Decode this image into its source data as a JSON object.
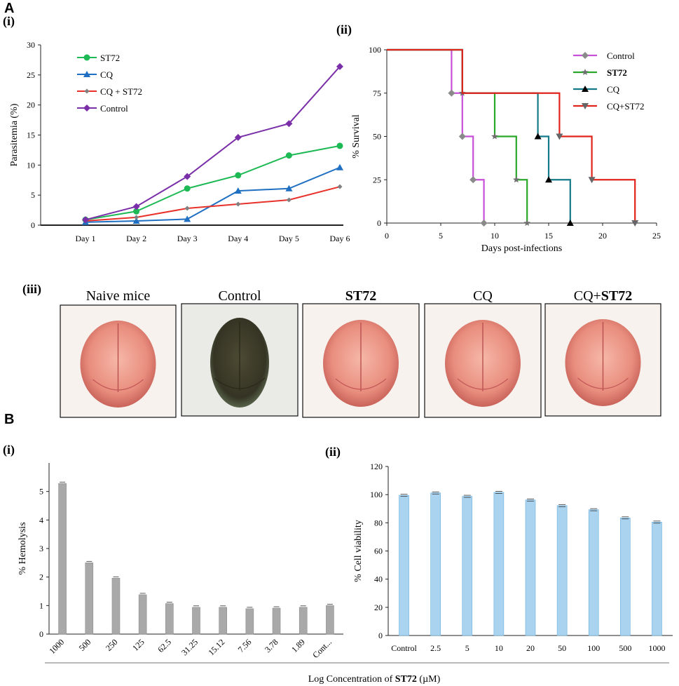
{
  "panels": {
    "a_letter": "A",
    "b_letter": "B",
    "a1": "(i)",
    "a2": "(ii)",
    "a3": "(iii)",
    "b1": "(i)",
    "b2": "(ii)"
  },
  "photos": {
    "labels": [
      "Naive mice",
      "Control",
      "ST72",
      "CQ",
      "CQ+ST72"
    ],
    "bold_parts": [
      "",
      "",
      "ST72",
      "",
      "ST72"
    ],
    "plain_parts": [
      "Naive mice",
      "Control",
      "",
      "CQ",
      "CQ+"
    ],
    "tones": [
      "pink",
      "dark",
      "pink",
      "pink",
      "pink"
    ]
  },
  "colors": {
    "ST72": "#1db954",
    "CQ": "#1f6fc2",
    "CQ_ST72": "#e8312a",
    "Control": "#7a2fa8",
    "surv_control": "#c84fd8",
    "surv_st72": "#2aa82a",
    "surv_cq": "#137a8a",
    "surv_cqst72": "#e0241c",
    "hemo_bar": "#a9a9a9",
    "viab_bar": "#a9d3ef"
  },
  "chart_data": [
    {
      "id": "parasitemia",
      "type": "line",
      "title": "",
      "xlabel": "",
      "ylabel": "Parasitemia (%)",
      "categories": [
        "Day 1",
        "Day 2",
        "Day 3",
        "Day 4",
        "Day 5",
        "Day 6"
      ],
      "ylim": [
        0,
        30
      ],
      "yticks": [
        0,
        5,
        10,
        15,
        20,
        25,
        30
      ],
      "legend_position": "top-left",
      "series": [
        {
          "name": "ST72",
          "marker": "circle",
          "values": [
            0.9,
            2.3,
            6.1,
            8.3,
            11.6,
            13.2
          ]
        },
        {
          "name": "CQ",
          "marker": "triangle",
          "values": [
            0.5,
            0.7,
            1.0,
            5.7,
            6.1,
            9.6
          ]
        },
        {
          "name": "CQ + ST72",
          "marker": "diamond-small",
          "values": [
            0.7,
            1.3,
            2.8,
            3.5,
            4.2,
            6.4
          ]
        },
        {
          "name": "Control",
          "marker": "diamond",
          "values": [
            0.9,
            3.1,
            8.1,
            14.6,
            16.9,
            26.4
          ]
        }
      ]
    },
    {
      "id": "survival",
      "type": "line",
      "title": "",
      "xlabel": "Days post-infections",
      "ylabel": "% Survival",
      "xlim": [
        0,
        25
      ],
      "ylim": [
        0,
        100
      ],
      "xticks": [
        0,
        5,
        10,
        15,
        20,
        25
      ],
      "yticks": [
        0,
        25,
        50,
        75,
        100
      ],
      "legend_position": "top-right",
      "series": [
        {
          "name": "Control",
          "marker": "diamond",
          "steps": [
            [
              0,
              100
            ],
            [
              6,
              75
            ],
            [
              7,
              50
            ],
            [
              8,
              25
            ],
            [
              9,
              0
            ]
          ],
          "end": 9
        },
        {
          "name": "ST72",
          "marker": "star",
          "steps": [
            [
              0,
              100
            ],
            [
              7,
              75
            ],
            [
              10,
              50
            ],
            [
              12,
              25
            ],
            [
              13,
              0
            ]
          ],
          "end": 13
        },
        {
          "name": "CQ",
          "marker": "triangle",
          "steps": [
            [
              0,
              100
            ],
            [
              7,
              75
            ],
            [
              14,
              50
            ],
            [
              15,
              25
            ],
            [
              17,
              0
            ]
          ],
          "end": 17
        },
        {
          "name": "CQ+ST72",
          "marker": "triangle-down",
          "steps": [
            [
              0,
              100
            ],
            [
              7,
              75
            ],
            [
              16,
              50
            ],
            [
              19,
              25
            ],
            [
              23,
              0
            ]
          ],
          "end": 23
        }
      ],
      "censor_marks": {
        "Control": [
          [
            6,
            75
          ],
          [
            7,
            50
          ],
          [
            8,
            25
          ],
          [
            9,
            0
          ]
        ],
        "ST72": [
          [
            7,
            75
          ],
          [
            10,
            50
          ],
          [
            12,
            25
          ],
          [
            13,
            0
          ]
        ],
        "CQ": [
          [
            14,
            50
          ],
          [
            15,
            25
          ],
          [
            17,
            0
          ]
        ],
        "CQ+ST72": [
          [
            16,
            50
          ],
          [
            19,
            25
          ],
          [
            23,
            0
          ]
        ]
      }
    },
    {
      "id": "hemolysis",
      "type": "bar",
      "title": "",
      "xlabel": "",
      "ylabel": "% Hemolysis",
      "categories": [
        "1000",
        "500",
        "250",
        "125",
        "62.5",
        "31.25",
        "15.12",
        "7.56",
        "3.78",
        "1.89",
        "Cont..."
      ],
      "values": [
        5.28,
        2.5,
        1.96,
        1.38,
        1.07,
        0.94,
        0.94,
        0.89,
        0.91,
        0.94,
        1.0
      ],
      "ylim": [
        0,
        6
      ],
      "yticks": [
        0,
        1,
        2,
        3,
        4,
        5
      ]
    },
    {
      "id": "viability",
      "type": "bar",
      "title": "",
      "xlabel": "",
      "ylabel": "% Cell viability",
      "categories": [
        "Control",
        "2.5",
        "5",
        "10",
        "20",
        "50",
        "100",
        "500",
        "1000"
      ],
      "values": [
        99.5,
        101.2,
        98.8,
        101.6,
        96.2,
        92.2,
        89.3,
        83.5,
        80.5
      ],
      "ylim": [
        0,
        120
      ],
      "yticks": [
        0,
        20,
        40,
        60,
        80,
        100,
        120
      ]
    }
  ],
  "shared_xlabel": {
    "prefix": "Log Concentration of ",
    "bold": "ST72",
    "suffix": " (µM)"
  }
}
